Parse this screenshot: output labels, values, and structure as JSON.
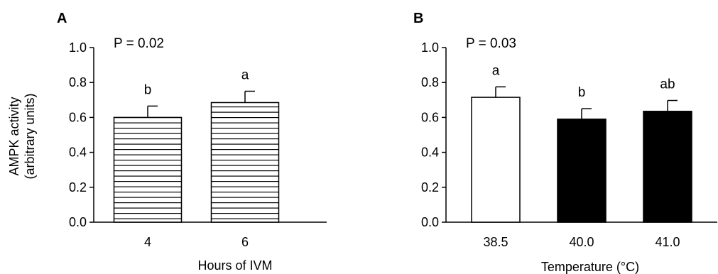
{
  "chart_data": [
    {
      "type": "bar",
      "panel_label": "A",
      "categories": [
        "4",
        "6"
      ],
      "values": [
        0.6,
        0.685
      ],
      "errors": [
        0.065,
        0.065
      ],
      "significance": [
        "b",
        "a"
      ],
      "p_value_text": "P = 0.02",
      "xlabel": "Hours of IVM",
      "ylabel": [
        "AMPK activity",
        "(arbitrary units)"
      ],
      "ylim": [
        0,
        1.0
      ],
      "yticks": [
        "0.0",
        "0.2",
        "0.4",
        "0.6",
        "0.8",
        "1.0"
      ],
      "bar_style": [
        "hatched",
        "hatched"
      ],
      "grid": false
    },
    {
      "type": "bar",
      "panel_label": "B",
      "categories": [
        "38.5",
        "40.0",
        "41.0"
      ],
      "values": [
        0.715,
        0.59,
        0.635
      ],
      "errors": [
        0.06,
        0.06,
        0.062
      ],
      "significance": [
        "a",
        "b",
        "ab"
      ],
      "p_value_text": "P = 0.03",
      "xlabel": "Temperature (°C)",
      "ylabel": [],
      "ylim": [
        0,
        1.0
      ],
      "yticks": [
        "0.0",
        "0.2",
        "0.4",
        "0.6",
        "0.8",
        "1.0"
      ],
      "bar_style": [
        "white",
        "black",
        "black"
      ],
      "grid": false
    }
  ],
  "colors": {
    "ink": "#000000",
    "white_bar": "#ffffff",
    "black_bar": "#000000"
  }
}
